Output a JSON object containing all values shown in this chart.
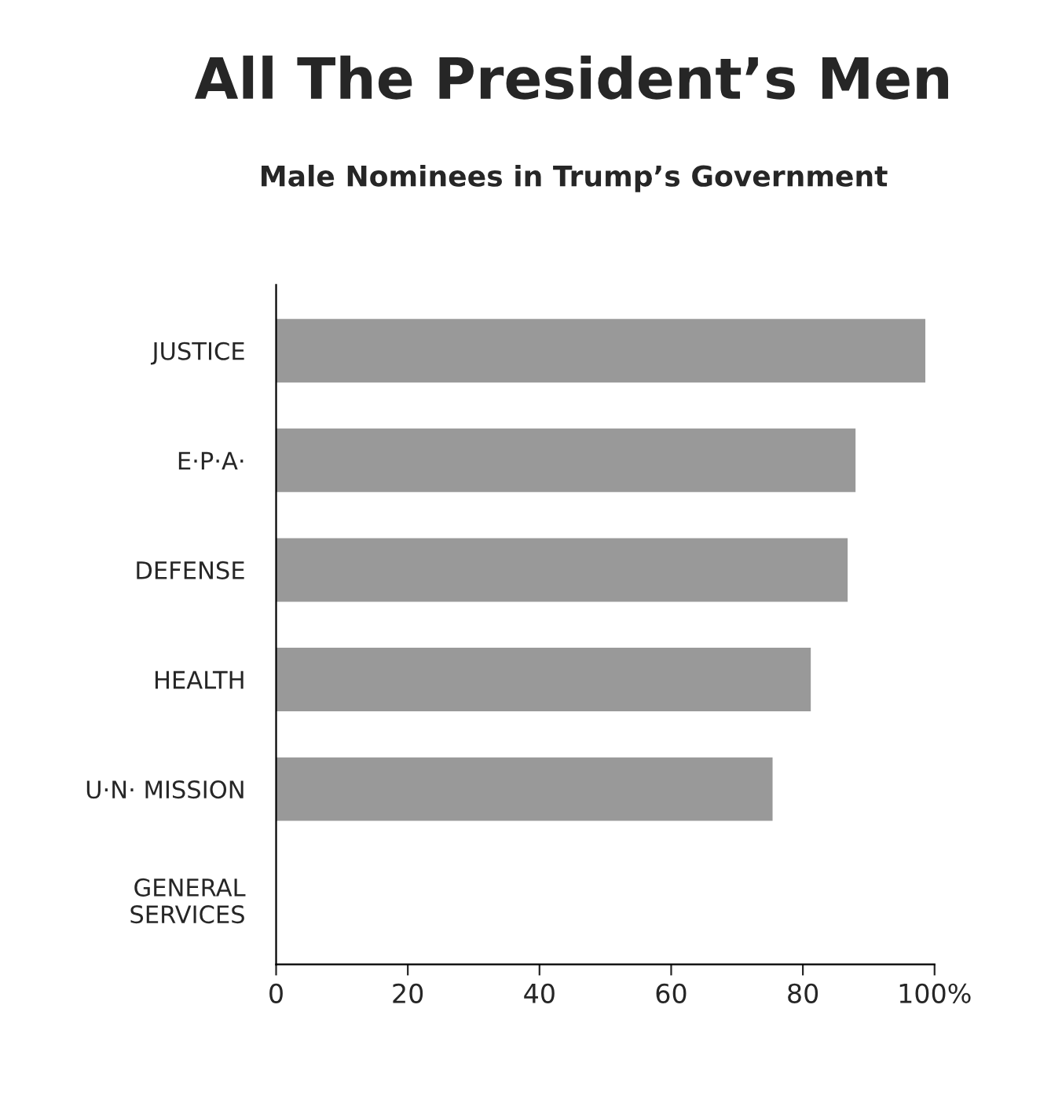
{
  "chart_data": {
    "type": "bar",
    "orientation": "horizontal",
    "title": "All The President’s Men",
    "subtitle": "Male Nominees in Trump’s Government",
    "categories": [
      "JUSTICE",
      "E·P·A·",
      "DEFENSE",
      "HEALTH",
      "U·N· MISSION",
      "GENERAL\nSERVICES"
    ],
    "values": [
      98.6,
      88.0,
      86.8,
      81.2,
      75.4,
      0
    ],
    "color": "#999999",
    "xlim": [
      0,
      100
    ],
    "xticks": [
      0,
      20,
      40,
      60,
      80,
      {
        "value": 100,
        "label": "100%"
      }
    ],
    "grid": false
  }
}
